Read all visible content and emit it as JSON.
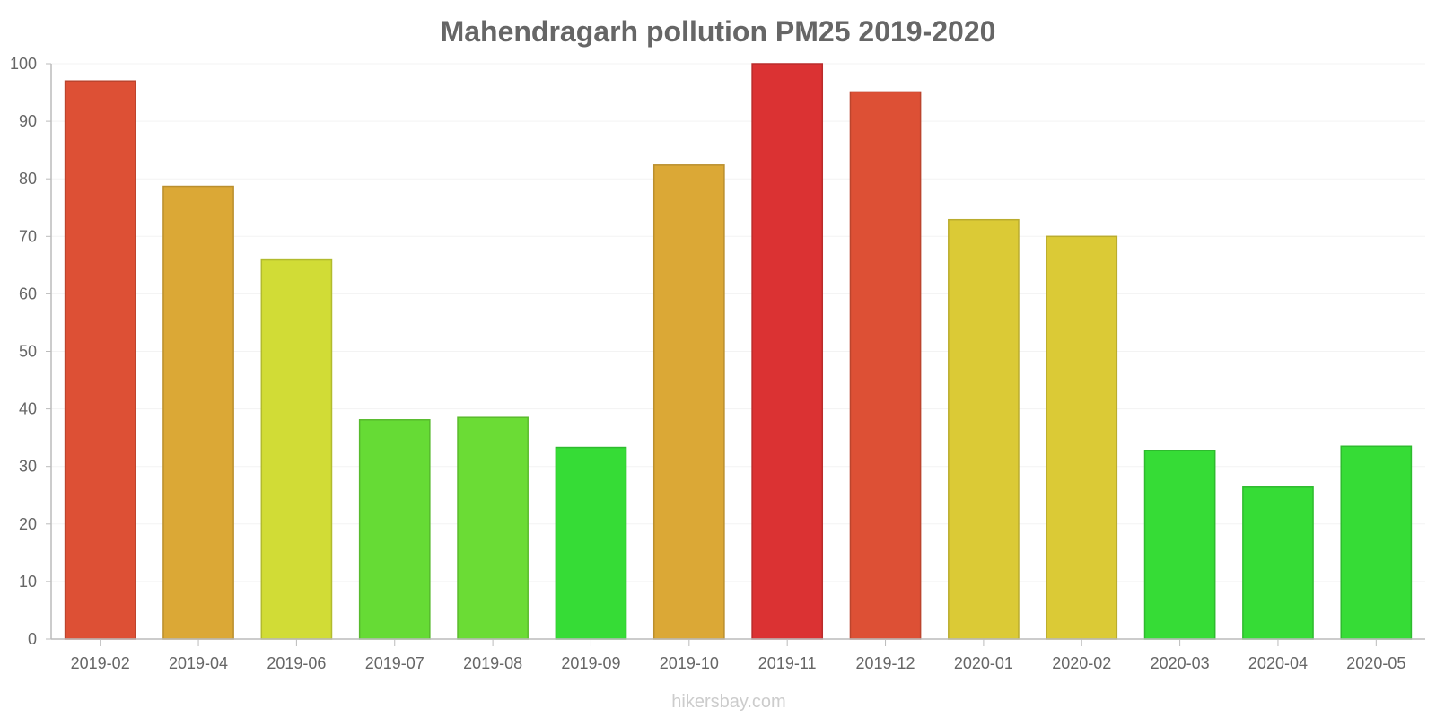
{
  "chart_data": {
    "type": "bar",
    "title": "Mahendragarh pollution PM25 2019-2020",
    "xlabel": "",
    "ylabel": "",
    "ylim": [
      0,
      100
    ],
    "yticks": [
      "0",
      "10",
      "20",
      "30",
      "40",
      "50",
      "60",
      "70",
      "80",
      "90",
      "100"
    ],
    "categories": [
      "2019-02",
      "2019-04",
      "2019-06",
      "2019-07",
      "2019-08",
      "2019-09",
      "2019-10",
      "2019-11",
      "2019-12",
      "2020-01",
      "2020-02",
      "2020-03",
      "2020-04",
      "2020-05"
    ],
    "values": [
      97,
      78.7,
      65.9,
      38.1,
      38.5,
      33.3,
      82.4,
      100,
      95.1,
      72.9,
      70,
      32.8,
      26.4,
      33.5
    ],
    "colors": [
      "#dd5035",
      "#dba836",
      "#d1dc36",
      "#66db35",
      "#6bdc35",
      "#36dc36",
      "#dba836",
      "#db3233",
      "#dd5035",
      "#dbca36",
      "#dbca36",
      "#36dc36",
      "#36dc36",
      "#36dc36"
    ],
    "grid": true
  },
  "watermark": "hikersbay.com"
}
